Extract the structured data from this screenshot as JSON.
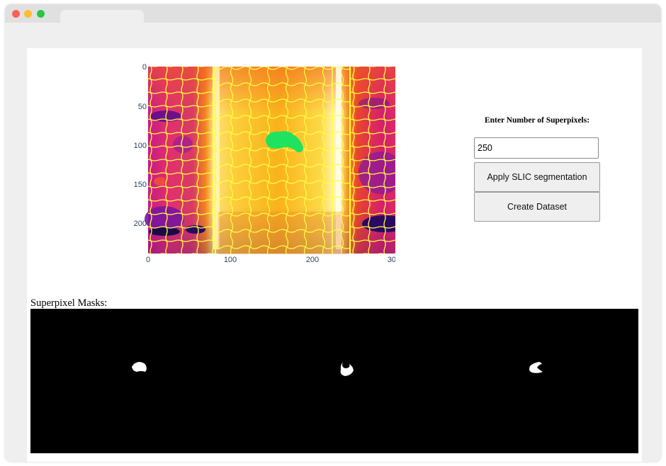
{
  "browser": {
    "colors": {
      "close": "#fe5f57",
      "minimize": "#febc2e",
      "maximize": "#28c840"
    }
  },
  "plot": {
    "x_ticks": [
      "0",
      "100",
      "200",
      "300"
    ],
    "y_ticks": [
      "0",
      "50",
      "100",
      "150",
      "200"
    ],
    "colormap": "plasma-like thermal",
    "highlight_color": "#1fe35f",
    "contour_color": "#ffff40"
  },
  "controls": {
    "label": "Enter Number of Superpixels:",
    "input_value": "250",
    "apply_button": "Apply SLIC segmentation",
    "create_button": "Create Dataset"
  },
  "masks": {
    "label": "Superpixel Masks:",
    "count": 3
  }
}
